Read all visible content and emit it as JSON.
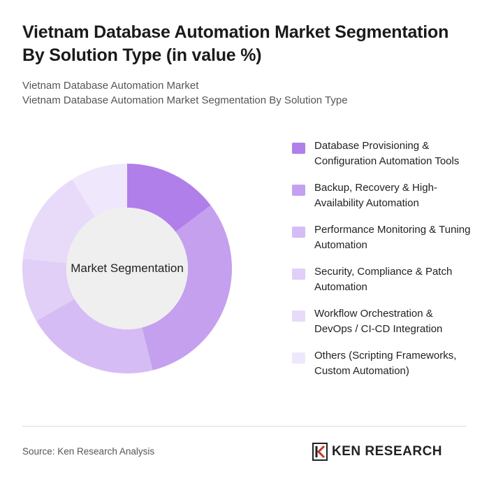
{
  "title": "Vietnam Database Automation Market Segmentation By Solution Type (in value %)",
  "subtitle_1": "Vietnam Database Automation Market",
  "subtitle_2": "Vietnam Database Automation Market Segmentation By Solution Type",
  "source": "Source: Ken Research Analysis",
  "logo_text": "KEN RESEARCH",
  "chart_data": {
    "type": "pie",
    "variant": "donut",
    "center_label": "Market Segmentation",
    "legend_position": "right",
    "categories": [
      "Database Provisioning & Configuration Automation Tools",
      "Backup, Recovery & High-Availability Automation",
      "Performance Monitoring & Tuning Automation",
      "Security, Compliance & Patch Automation",
      "Workflow Orchestration & DevOps / CI-CD Integration",
      "Others (Scripting Frameworks, Custom Automation)"
    ],
    "values": [
      15,
      32,
      21,
      10,
      15,
      9
    ],
    "colors": [
      "#b07fea",
      "#c4a0ef",
      "#d6bcf4",
      "#e1cff7",
      "#e8dbf9",
      "#efe7fb"
    ]
  }
}
